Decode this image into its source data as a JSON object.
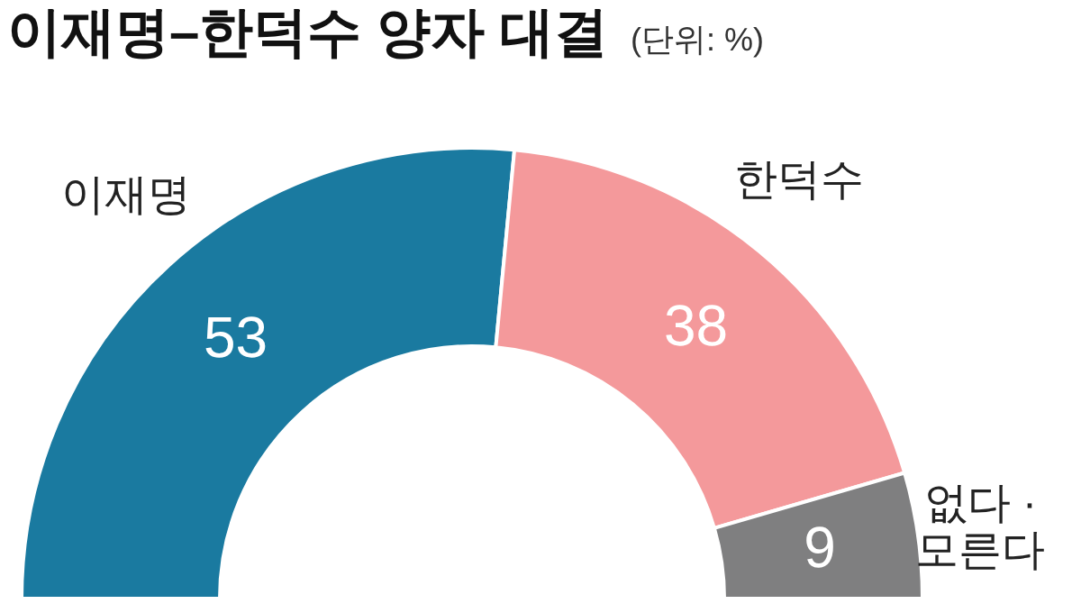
{
  "chart_data": {
    "type": "donut",
    "title": "이재명–한덕수 양자 대결",
    "subtitle": "(단위: %)",
    "categories": [
      "이재명",
      "한덕수",
      "없다 · 모른다"
    ],
    "values": [
      53,
      38,
      9
    ],
    "colors": [
      "#1a7aa0",
      "#f4999b",
      "#7f7f80"
    ],
    "data_labels": true
  }
}
